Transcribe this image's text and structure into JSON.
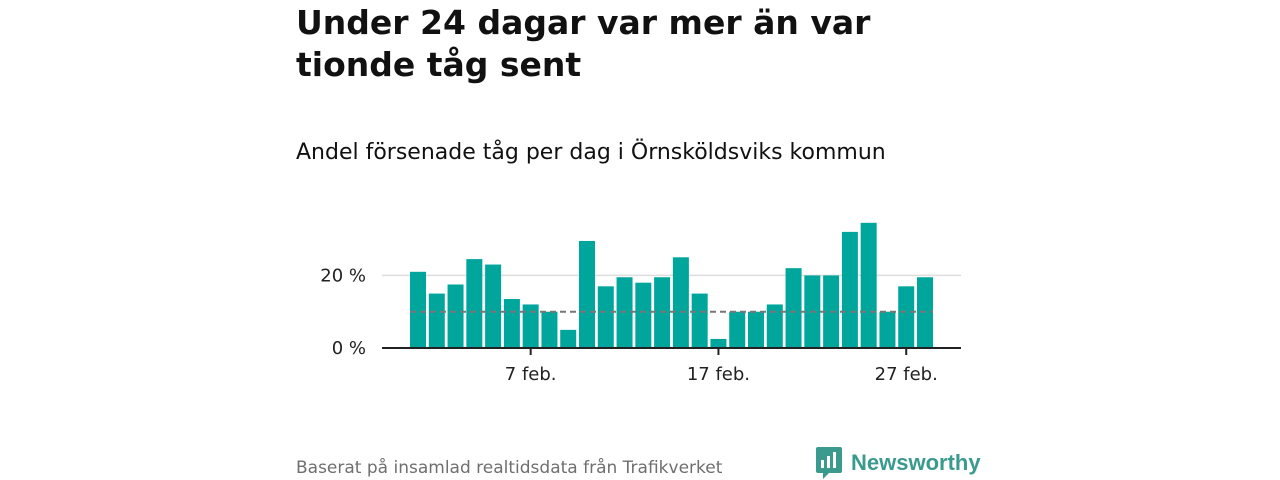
{
  "title": "Under 24 dagar var mer än var tionde tåg sent",
  "subtitle": "Andel försenade tåg per dag i Örnsköldsviks kommun",
  "source": "Baserat på insamlad realtidsdata från Trafikverket",
  "brand": {
    "name": "Newsworthy",
    "icon": "newsworthy-logo-icon"
  },
  "colors": {
    "bar": "#00a69c",
    "reference": "#777777",
    "grid": "#dddddd",
    "axis": "#222222",
    "brand": "#3a9a8e"
  },
  "chart_data": {
    "type": "bar",
    "x": [
      "1 feb.",
      "2 feb.",
      "3 feb.",
      "4 feb.",
      "5 feb.",
      "6 feb.",
      "7 feb.",
      "8 feb.",
      "9 feb.",
      "10 feb.",
      "11 feb.",
      "12 feb.",
      "13 feb.",
      "14 feb.",
      "15 feb.",
      "16 feb.",
      "17 feb.",
      "18 feb.",
      "19 feb.",
      "20 feb.",
      "21 feb.",
      "22 feb.",
      "23 feb.",
      "24 feb.",
      "25 feb.",
      "26 feb.",
      "27 feb.",
      "28 feb."
    ],
    "values": [
      21,
      15,
      17.5,
      24.5,
      23,
      13.5,
      12,
      10,
      5,
      29.5,
      17,
      19.5,
      18,
      19.5,
      25,
      15,
      2.5,
      10,
      10,
      12,
      22,
      20,
      20,
      32,
      34.5,
      10,
      17,
      19.5
    ],
    "unit": "%",
    "ylim": [
      0,
      35
    ],
    "y_ticks": [
      {
        "value": 0,
        "label": "0 %"
      },
      {
        "value": 20,
        "label": "20 %"
      }
    ],
    "x_ticks": [
      {
        "value": "7 feb.",
        "label": "7 feb."
      },
      {
        "value": "17 feb.",
        "label": "17 feb."
      },
      {
        "value": "27 feb.",
        "label": "27 feb."
      }
    ],
    "reference_line": {
      "value": 10,
      "style": "dashed"
    },
    "grid": true,
    "legend": "none"
  }
}
